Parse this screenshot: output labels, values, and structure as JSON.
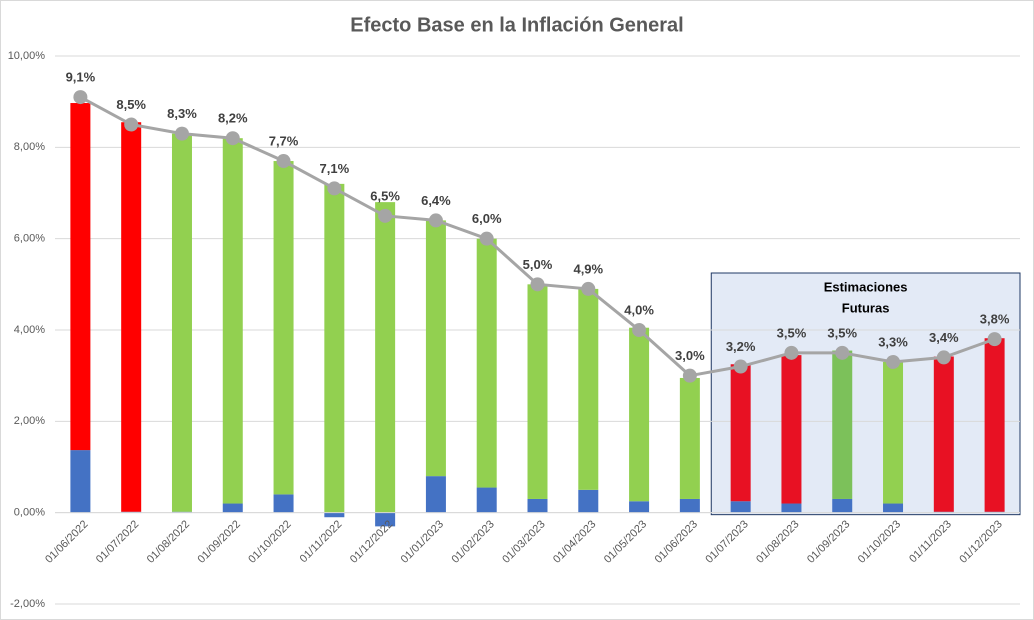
{
  "chart_data": {
    "type": "stacked-bar-line",
    "title": "Efecto Base en la Inflación General",
    "annotation": [
      "Estimaciones",
      "Futuras"
    ],
    "categories": [
      "01/06/2022",
      "01/07/2022",
      "01/08/2022",
      "01/09/2022",
      "01/10/2022",
      "01/11/2022",
      "01/12/2022",
      "01/01/2023",
      "01/02/2023",
      "01/03/2023",
      "01/04/2023",
      "01/05/2023",
      "01/06/2023",
      "01/07/2023",
      "01/08/2023",
      "01/09/2023",
      "01/10/2023",
      "01/11/2023",
      "01/12/2023"
    ],
    "series": [
      {
        "kind": "bar",
        "color": "#4472c4",
        "values": [
          1.37,
          0.02,
          0.02,
          0.2,
          0.4,
          -0.1,
          -0.3,
          0.8,
          0.55,
          0.3,
          0.5,
          0.25,
          0.3,
          0.25,
          0.2,
          0.3,
          0.2,
          0.02,
          0.02
        ]
      },
      {
        "kind": "bar",
        "colors": [
          "#ff0000",
          "#ff0000",
          "#92d050",
          "#92d050",
          "#92d050",
          "#92d050",
          "#92d050",
          "#92d050",
          "#92d050",
          "#92d050",
          "#92d050",
          "#92d050",
          "#92d050",
          "#e81123",
          "#e81123",
          "#7cc15a",
          "#92d050",
          "#e81123",
          "#e81123"
        ],
        "values": [
          7.6,
          8.53,
          8.28,
          8.0,
          7.3,
          7.2,
          6.8,
          5.6,
          5.45,
          4.7,
          4.4,
          3.8,
          2.65,
          3.0,
          3.25,
          3.25,
          3.1,
          3.4,
          3.8
        ]
      },
      {
        "kind": "line",
        "color": "#a5a5a5",
        "values": [
          9.1,
          8.5,
          8.3,
          8.2,
          7.7,
          7.1,
          6.5,
          6.4,
          6.0,
          5.0,
          4.9,
          4.0,
          3.0,
          3.2,
          3.5,
          3.5,
          3.3,
          3.4,
          3.8
        ],
        "value_labels": [
          "9,1%",
          "8,5%",
          "8,3%",
          "8,2%",
          "7,7%",
          "7,1%",
          "6,5%",
          "6,4%",
          "6,0%",
          "5,0%",
          "4,9%",
          "4,0%",
          "3,0%",
          "3,2%",
          "3,5%",
          "3,5%",
          "3,3%",
          "3,4%",
          "3,8%"
        ]
      }
    ],
    "ylim": [
      -2,
      10
    ],
    "yticks": [
      {
        "value": -2,
        "label": "-2,00%"
      },
      {
        "value": 0,
        "label": "0,00%"
      },
      {
        "value": 2,
        "label": "2,00%"
      },
      {
        "value": 4,
        "label": "4,00%"
      },
      {
        "value": 6,
        "label": "6,00%"
      },
      {
        "value": 8,
        "label": "8,00%"
      },
      {
        "value": 10,
        "label": "10,00%"
      }
    ],
    "grid": true
  }
}
